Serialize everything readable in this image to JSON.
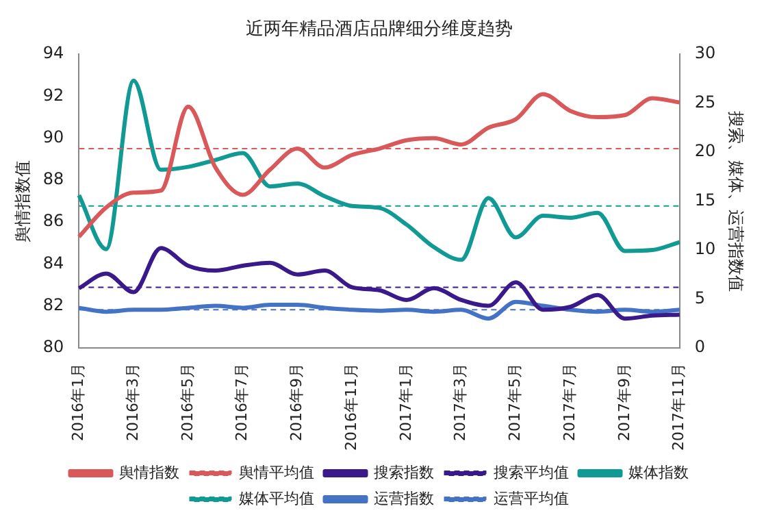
{
  "chart_data": {
    "type": "line",
    "title": "近两年精品酒店品牌细分维度趋势",
    "ylabel": "舆情指数值",
    "y2label": "搜索、媒体、运营指数值",
    "categories": [
      "2016年1月",
      null,
      "2016年3月",
      null,
      "2016年5月",
      null,
      "2016年7月",
      null,
      "2016年9月",
      null,
      "2016年11月",
      null,
      "2017年1月",
      null,
      "2017年3月",
      null,
      "2017年5月",
      null,
      "2017年7月",
      null,
      "2017年9月",
      null,
      "2017年11月"
    ],
    "ylim": [
      80,
      94
    ],
    "yticks": [
      80,
      82,
      84,
      86,
      88,
      90,
      92,
      94
    ],
    "y2lim": [
      0,
      30
    ],
    "y2ticks": [
      0,
      5,
      10,
      15,
      20,
      25,
      30
    ],
    "grid": false,
    "legend": "bottom",
    "marker": "none",
    "series": [
      {
        "name": "舆情指数",
        "color": "#d9585a",
        "line_style": "solid",
        "values": [
          85.3,
          86.7,
          87.4,
          87.5,
          91.5,
          88.6,
          87.3,
          88.5,
          89.5,
          88.6,
          89.2,
          89.5,
          89.9,
          90.0,
          89.7,
          90.5,
          90.9,
          92.1,
          91.3,
          91.0,
          91.1,
          91.9,
          91.7
        ]
      },
      {
        "name": "舆情平均值",
        "color": "#d9585a",
        "line_style": "dashed",
        "values": [
          89.5,
          89.5,
          89.5,
          89.5,
          89.5,
          89.5,
          89.5,
          89.5,
          89.5,
          89.5,
          89.5,
          89.5,
          89.5,
          89.5,
          89.5,
          89.5,
          89.5,
          89.5,
          89.5,
          89.5,
          89.5,
          89.5,
          89.5
        ]
      },
      {
        "name": "搜索指数",
        "color": "#3a1a8a",
        "axis": "y2",
        "line_style": "solid",
        "values": [
          6.1,
          7.6,
          5.7,
          10.2,
          8.4,
          7.9,
          8.4,
          8.7,
          7.5,
          7.9,
          6.2,
          5.9,
          4.9,
          6.1,
          4.9,
          4.3,
          6.7,
          3.9,
          4.2,
          5.4,
          3.0,
          3.3,
          3.4
        ]
      },
      {
        "name": "搜索平均值",
        "color": "#3a1a8a",
        "axis": "y2",
        "line_style": "dashed",
        "values": [
          6.2,
          6.2,
          6.2,
          6.2,
          6.2,
          6.2,
          6.2,
          6.2,
          6.2,
          6.2,
          6.2,
          6.2,
          6.2,
          6.2,
          6.2,
          6.2,
          6.2,
          6.2,
          6.2,
          6.2,
          6.2,
          6.2,
          6.2
        ]
      },
      {
        "name": "媒体指数",
        "color": "#119a94",
        "axis": "y2",
        "line_style": "solid",
        "values": [
          15.6,
          10.1,
          27.3,
          18.2,
          18.5,
          19.2,
          19.9,
          16.5,
          16.8,
          15.5,
          14.5,
          14.3,
          12.6,
          10.3,
          9.0,
          15.3,
          11.3,
          13.5,
          13.3,
          13.8,
          9.9,
          10.0,
          10.8
        ]
      },
      {
        "name": "媒体平均值",
        "color": "#119a94",
        "axis": "y2",
        "line_style": "dashed",
        "values": [
          14.5,
          14.5,
          14.5,
          14.5,
          14.5,
          14.5,
          14.5,
          14.5,
          14.5,
          14.5,
          14.5,
          14.5,
          14.5,
          14.5,
          14.5,
          14.5,
          14.5,
          14.5,
          14.5,
          14.5,
          14.5,
          14.5,
          14.5
        ]
      },
      {
        "name": "运营指数",
        "color": "#4472c4",
        "axis": "y2",
        "line_style": "solid",
        "values": [
          4.1,
          3.7,
          3.9,
          3.9,
          4.1,
          4.3,
          4.1,
          4.4,
          4.4,
          4.1,
          3.9,
          3.8,
          3.9,
          3.7,
          3.9,
          3.0,
          4.7,
          4.3,
          3.9,
          3.7,
          3.9,
          3.7,
          3.9
        ]
      },
      {
        "name": "运营平均值",
        "color": "#4472c4",
        "axis": "y2",
        "line_style": "dashed",
        "values": [
          3.9,
          3.9,
          3.9,
          3.9,
          3.9,
          3.9,
          3.9,
          3.9,
          3.9,
          3.9,
          3.9,
          3.9,
          3.9,
          3.9,
          3.9,
          3.9,
          3.9,
          3.9,
          3.9,
          3.9,
          3.9,
          3.9,
          3.9
        ]
      }
    ]
  }
}
